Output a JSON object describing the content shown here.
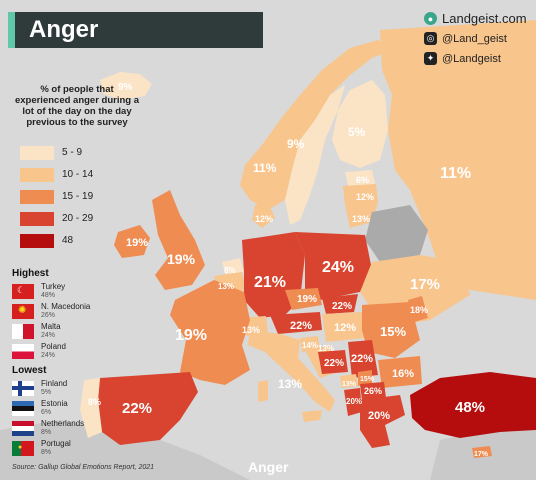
{
  "title": "Anger",
  "brand": {
    "site": "Landgeist.com",
    "instagram": "@Land_geist",
    "twitter": "@Landgeist"
  },
  "legend": {
    "title": "% of people that experienced anger during a lot of the day on the day previous to the survey",
    "items": [
      {
        "label": "5  -  9",
        "color": "#fbe3c6"
      },
      {
        "label": "10  -  14",
        "color": "#f8c58d"
      },
      {
        "label": "15  -  19",
        "color": "#ef8c52"
      },
      {
        "label": "20  -  29",
        "color": "#d8442f"
      },
      {
        "label": "48",
        "color": "#b50d0d"
      }
    ]
  },
  "highest": {
    "heading": "Highest",
    "items": [
      {
        "name": "Turkey",
        "value": "48%"
      },
      {
        "name": "N. Macedonia",
        "value": "26%"
      },
      {
        "name": "Malta",
        "value": "24%"
      },
      {
        "name": "Poland",
        "value": "24%"
      }
    ]
  },
  "lowest": {
    "heading": "Lowest",
    "items": [
      {
        "name": "Finland",
        "value": "5%"
      },
      {
        "name": "Estonia",
        "value": "6%"
      },
      {
        "name": "Netherlands",
        "value": "8%"
      },
      {
        "name": "Portugal",
        "value": "8%"
      }
    ]
  },
  "source": "Source: Gallup Global Emotions Report, 2021",
  "watermark": "Anger",
  "map_labels": {
    "iceland": "9%",
    "norway": "11%",
    "sweden": "9%",
    "finland": "5%",
    "russia": "11%",
    "estonia": "6%",
    "latvia": "12%",
    "lithuania": "13%",
    "denmark": "12%",
    "ireland": "19%",
    "uk": "19%",
    "netherlands": "8%",
    "belgium": "13%",
    "germany": "21%",
    "poland": "24%",
    "ukraine": "17%",
    "moldova": "18%",
    "czechia": "19%",
    "slovakia": "22%",
    "austria": "22%",
    "switzerland": "13%",
    "hungary": "12%",
    "romania": "15%",
    "slovenia": "14%",
    "croatia": "13%",
    "bosnia": "22%",
    "serbia": "22%",
    "bulgaria": "16%",
    "montenegro": "13%",
    "kosovo": "15%",
    "n_macedonia": "26%",
    "albania": "20%",
    "greece": "20%",
    "france": "19%",
    "italy": "13%",
    "spain": "22%",
    "portugal": "8%",
    "turkey": "48%",
    "cyprus": "17%"
  }
}
